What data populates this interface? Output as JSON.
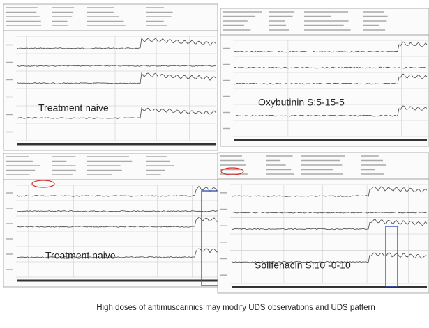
{
  "panels": [
    {
      "label": "Treatment naive"
    },
    {
      "label": "Oxybutinin S:5-15-5"
    },
    {
      "label": "Treatment naive"
    },
    {
      "label": "Solifenacin S:10 -0-10"
    }
  ],
  "caption": "High doses of antimuscarinics may modify UDS observations and UDS pattern"
}
